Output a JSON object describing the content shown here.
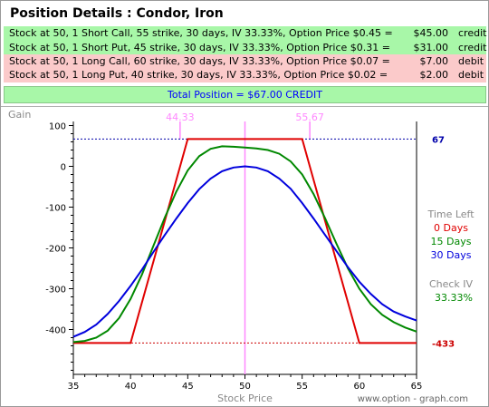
{
  "title": "Position Details : Condor, Iron",
  "positions": [
    {
      "desc": "Stock at 50, 1 Short Call, 55 strike, 30 days, IV 33.33%, Option Price $0.45 =",
      "amount": "$45.00",
      "kind": "credit"
    },
    {
      "desc": "Stock at 50, 1 Short Put, 45 strike, 30 days, IV 33.33%, Option Price $0.31 =",
      "amount": "$31.00",
      "kind": "credit"
    },
    {
      "desc": "Stock at 50, 1 Long Call, 60 strike, 30 days, IV 33.33%, Option Price $0.07 =",
      "amount": "$7.00",
      "kind": "debit"
    },
    {
      "desc": "Stock at 50, 1 Long Put, 40 strike, 30 days, IV 33.33%, Option Price $0.02 =",
      "amount": "$2.00",
      "kind": "debit"
    }
  ],
  "total": "Total Position = $67.00    CREDIT",
  "colors": {
    "credit_bg": "#a8f7a8",
    "debit_bg": "#fbcaca",
    "total_text": "#0000ff",
    "series_0": "#e00000",
    "series_15": "#008800",
    "series_30": "#0000dd",
    "breakeven": "#ff88ff",
    "max_line": "#0000aa",
    "min_line": "#cc0000"
  },
  "chart_data": {
    "type": "line",
    "ylabel": "Gain",
    "xlabel": "Stock Price",
    "xlim": [
      35,
      65
    ],
    "ylim": [
      -510,
      110
    ],
    "x_ticks": [
      35,
      40,
      45,
      50,
      55,
      60,
      65
    ],
    "y_ticks": [
      100,
      0,
      -100,
      -200,
      -300,
      -400
    ],
    "breakevens": [
      44.33,
      55.67
    ],
    "breakeven_labels": [
      "44.33",
      "55.67"
    ],
    "current_price": 50,
    "max_gain": 67,
    "max_gain_label": "67",
    "max_loss": -433,
    "max_loss_label": "-433",
    "legend_title": "Time Left",
    "series": [
      {
        "name": "0 Days",
        "color": "#e00000",
        "x": [
          35,
          40,
          44.33,
          45,
          55,
          55.67,
          60,
          65
        ],
        "y": [
          -433,
          -433,
          0,
          67,
          67,
          0,
          -433,
          -433
        ]
      },
      {
        "name": "15 Days",
        "color": "#008800",
        "x": [
          35,
          36,
          37,
          38,
          39,
          40,
          41,
          42,
          43,
          44,
          45,
          46,
          47,
          48,
          49,
          50,
          51,
          52,
          53,
          54,
          55,
          56,
          57,
          58,
          59,
          60,
          61,
          62,
          63,
          64,
          65
        ],
        "y": [
          -431,
          -428,
          -420,
          -403,
          -372,
          -325,
          -265,
          -195,
          -125,
          -62,
          -10,
          25,
          43,
          49,
          48,
          46,
          44,
          40,
          31,
          12,
          -20,
          -68,
          -127,
          -190,
          -250,
          -300,
          -338,
          -364,
          -382,
          -395,
          -405
        ]
      },
      {
        "name": "30 Days",
        "color": "#0000dd",
        "x": [
          35,
          36,
          37,
          38,
          39,
          40,
          41,
          42,
          43,
          44,
          45,
          46,
          47,
          48,
          49,
          50,
          51,
          52,
          53,
          54,
          55,
          56,
          57,
          58,
          59,
          60,
          61,
          62,
          63,
          64,
          65
        ],
        "y": [
          -418,
          -406,
          -388,
          -362,
          -330,
          -293,
          -253,
          -210,
          -168,
          -128,
          -90,
          -56,
          -30,
          -12,
          -3,
          0,
          -3,
          -12,
          -30,
          -55,
          -90,
          -128,
          -168,
          -208,
          -247,
          -283,
          -313,
          -338,
          -356,
          -368,
          -378
        ]
      }
    ],
    "iv_label": "Check IV",
    "iv_value": "33.33%",
    "watermark": "www.option - graph.com"
  }
}
